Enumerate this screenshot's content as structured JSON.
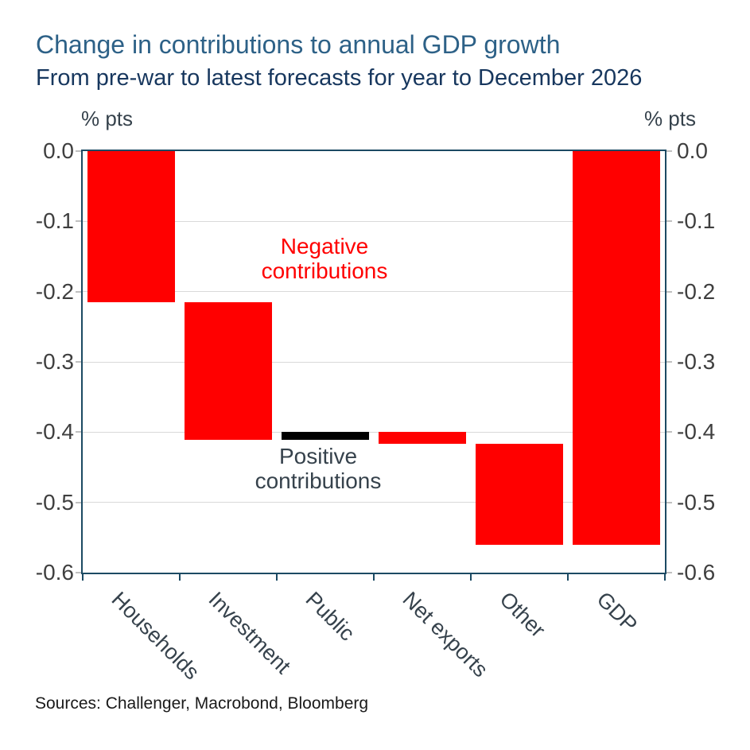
{
  "chart_data": {
    "type": "bar",
    "subtype": "waterfall",
    "title": "Change in contributions to annual GDP growth",
    "subtitle": "From pre-war to latest forecasts for year to December 2026",
    "ylabel_left": "% pts",
    "ylabel_right": "% pts",
    "ylim": [
      -0.6,
      0.0
    ],
    "y_tick_labels": [
      "0.0",
      "-0.1",
      "-0.2",
      "-0.3",
      "-0.4",
      "-0.5",
      "-0.6"
    ],
    "grid": "horizontal",
    "legend": "none",
    "categories": [
      "Households",
      "Investment",
      "Public",
      "Net exports",
      "Other",
      "GDP"
    ],
    "bars": [
      {
        "label": "Households",
        "start": 0.0,
        "end": -0.215,
        "contribution": -0.215,
        "color": "#ff0000"
      },
      {
        "label": "Investment",
        "start": -0.215,
        "end": -0.411,
        "contribution": -0.196,
        "color": "#ff0000"
      },
      {
        "label": "Public",
        "start": -0.411,
        "end": -0.4,
        "contribution": 0.011,
        "color": "#000000"
      },
      {
        "label": "Net exports",
        "start": -0.4,
        "end": -0.417,
        "contribution": -0.017,
        "color": "#ff0000"
      },
      {
        "label": "Other",
        "start": -0.417,
        "end": -0.56,
        "contribution": -0.143,
        "color": "#ff0000"
      },
      {
        "label": "GDP",
        "start": 0.0,
        "end": -0.56,
        "contribution": -0.56,
        "color": "#ff0000"
      }
    ],
    "annotations": {
      "negative": {
        "line1": "Negative",
        "line2": "contributions",
        "color": "#ff0000"
      },
      "positive": {
        "line1": "Positive",
        "line2": "contributions",
        "color": "#36424c"
      }
    }
  },
  "footer": {
    "sources": "Sources: Challenger, Macrobond, Bloomberg"
  },
  "colors": {
    "title": "#2d6187",
    "subtitle": "#17375e",
    "frame": "#1c4a63",
    "gridline": "#d9d9d9",
    "y_tick_mark": "#c0c0c0",
    "x_tick_mark": "#1c4a63",
    "tick_label": "#3f3f3f",
    "category_label": "#36424c",
    "unit_label": "#36424c",
    "annotation_negative": "#ff0000",
    "annotation_positive": "#36424c",
    "bar_negative": "#ff0000",
    "bar_positive": "#000000",
    "sources_text": "#1a1a1a"
  }
}
